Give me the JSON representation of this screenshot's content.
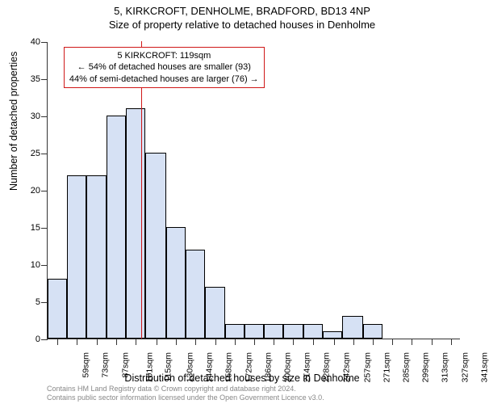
{
  "titles": {
    "line1": "5, KIRKCROFT, DENHOLME, BRADFORD, BD13 4NP",
    "line2": "Size of property relative to detached houses in Denholme"
  },
  "axis": {
    "ylabel": "Number of detached properties",
    "xlabel": "Distribution of detached houses by size in Denholme",
    "ylim": [
      0,
      40
    ],
    "yticks": [
      0,
      5,
      10,
      15,
      20,
      25,
      30,
      35,
      40
    ],
    "xlim": [
      52,
      348
    ],
    "xticks": [
      59,
      73,
      87,
      101,
      115,
      130,
      144,
      158,
      172,
      186,
      200,
      214,
      228,
      242,
      257,
      271,
      285,
      299,
      313,
      327,
      341
    ],
    "xtick_unit": "sqm",
    "tick_fontsize": 11,
    "label_fontsize": 12.5
  },
  "histogram": {
    "type": "histogram",
    "bar_fill": "#d6e1f4",
    "bar_stroke": "#000000",
    "bin_edges": [
      52,
      66,
      80,
      94,
      108,
      122,
      137,
      151,
      165,
      179,
      193,
      207,
      221,
      235,
      249,
      263,
      278,
      292,
      306,
      320,
      334,
      348
    ],
    "counts": [
      8,
      22,
      22,
      30,
      31,
      25,
      15,
      12,
      7,
      2,
      2,
      2,
      2,
      2,
      1,
      3,
      2,
      0,
      0,
      0,
      0
    ]
  },
  "marker": {
    "value_sqm": 119,
    "line_color": "#d01818",
    "line_width": 1.5,
    "callout_border": "#d01818",
    "callout_lines": {
      "l1": "5 KIRKCROFT: 119sqm",
      "l2": "← 54% of detached houses are smaller (93)",
      "l3": "44% of semi-detached houses are larger (76) →"
    }
  },
  "footer": {
    "l1": "Contains HM Land Registry data © Crown copyright and database right 2024.",
    "l2": "Contains public sector information licensed under the Open Government Licence v3.0."
  },
  "colors": {
    "background": "#ffffff",
    "axis_color": "#333333",
    "text_color": "#000000",
    "footer_color": "#888888"
  }
}
